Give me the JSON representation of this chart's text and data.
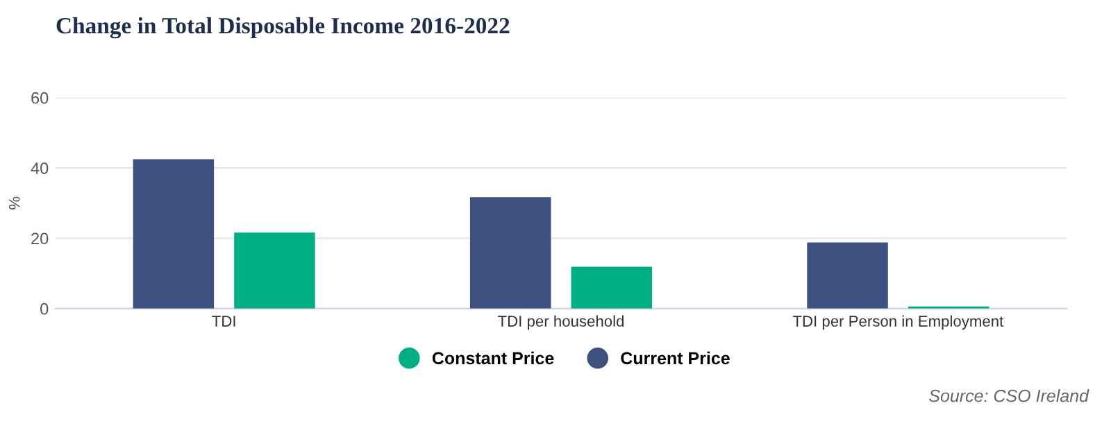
{
  "chart_data": {
    "type": "bar",
    "title": "Change in Total Disposable Income 2016-2022",
    "ylabel": "%",
    "categories": [
      "TDI",
      "TDI per household",
      "TDI per Person in Employment"
    ],
    "series": [
      {
        "name": "Current Price",
        "color": "#3d5080",
        "values": [
          42.5,
          31.7,
          18.8
        ]
      },
      {
        "name": "Constant Price",
        "color": "#00ae86",
        "values": [
          21.6,
          11.9,
          0.6
        ]
      }
    ],
    "ylim": [
      0,
      60
    ],
    "yticks": [
      0,
      20,
      40,
      60
    ],
    "grid": "y",
    "legend": "bottom",
    "marker": "circle",
    "annotations": [
      "Source: CSO Ireland"
    ]
  }
}
